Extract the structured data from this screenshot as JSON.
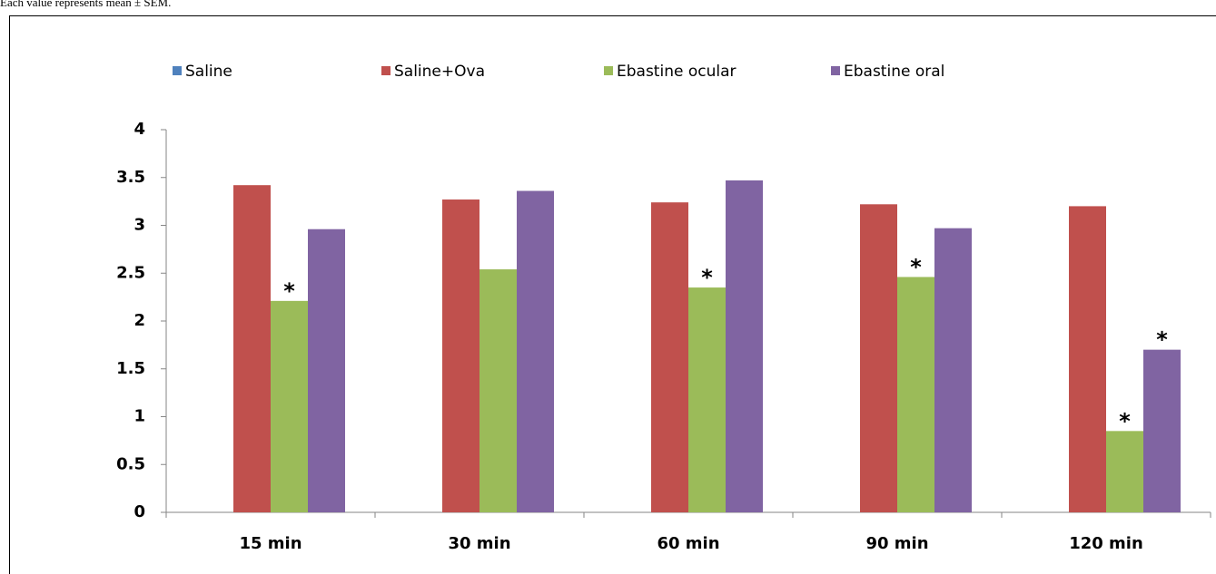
{
  "caption": "Each value represents mean ± SEM.",
  "chart_data": {
    "type": "bar",
    "categories": [
      "15 min",
      "30 min",
      "60 min",
      "90 min",
      "120 min"
    ],
    "series": [
      {
        "name": "Saline",
        "color": "#4f81bd",
        "values": [
          0,
          0,
          0,
          0,
          0
        ]
      },
      {
        "name": "Saline+Ova",
        "color": "#c0504d",
        "values": [
          3.42,
          3.27,
          3.24,
          3.22,
          3.2
        ]
      },
      {
        "name": "Ebastine ocular",
        "color": "#9bbb59",
        "values": [
          2.21,
          2.54,
          2.35,
          2.46,
          0.85
        ],
        "annotations": [
          "*",
          null,
          "*",
          "*",
          "*"
        ]
      },
      {
        "name": "Ebastine oral",
        "color": "#8064a2",
        "values": [
          2.96,
          3.36,
          3.47,
          2.97,
          1.7
        ],
        "annotations": [
          null,
          null,
          null,
          null,
          "*"
        ]
      }
    ],
    "ylim": [
      0,
      4
    ],
    "yticks": [
      0,
      0.5,
      1,
      1.5,
      2,
      2.5,
      3,
      3.5,
      4
    ],
    "legend": "top",
    "grid": false
  }
}
